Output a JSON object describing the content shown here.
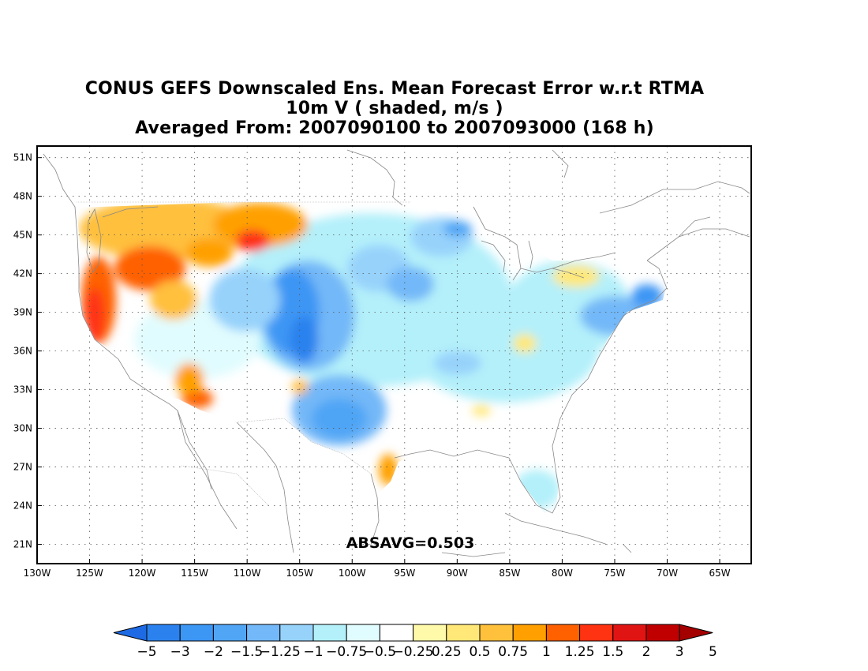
{
  "title": {
    "line1": "CONUS GEFS Downscaled Ens. Mean Forecast Error w.r.t RTMA",
    "line2": "10m V ( shaded, m/s )",
    "line3": "Averaged From: 2007090100 to 2007093000 (168 h)"
  },
  "map": {
    "lon_range": [
      -130,
      -62
    ],
    "lat_range": [
      19.5,
      51.9
    ],
    "lon_ticks": [
      "130W",
      "125W",
      "120W",
      "115W",
      "110W",
      "105W",
      "100W",
      "95W",
      "90W",
      "85W",
      "80W",
      "75W",
      "70W",
      "65W"
    ],
    "lat_ticks": [
      "51N",
      "48N",
      "45N",
      "42N",
      "39N",
      "36N",
      "33N",
      "30N",
      "27N",
      "24N",
      "21N"
    ],
    "grid": "dotted",
    "absavg_label": "ABSAVG=0.503"
  },
  "colorbar": {
    "labels": [
      "-5",
      "-3",
      "-2",
      "-1.5",
      "-1.25",
      "-1",
      "-0.75",
      "-0.5",
      "-0.25",
      "0.25",
      "0.5",
      "0.75",
      "1",
      "1.25",
      "1.5",
      "2",
      "3",
      "5"
    ],
    "colors": [
      "#1e6ae4",
      "#2b82ee",
      "#3c96f4",
      "#50a5f5",
      "#73b8f8",
      "#97d2fb",
      "#b4f0fa",
      "#e1fcfe",
      "#ffffff",
      "#fffaaa",
      "#ffe878",
      "#ffc03c",
      "#ffa000",
      "#ff6000",
      "#ff3212",
      "#e11414",
      "#c00000",
      "#a50000"
    ]
  },
  "chart_data": {
    "type": "heatmap",
    "variable": "10m V",
    "units": "m/s",
    "statistic": "ABSAVG=0.503",
    "x_axis": {
      "type": "longitude",
      "range": [
        -130,
        -62
      ]
    },
    "y_axis": {
      "type": "latitude",
      "range": [
        19.5,
        51.9
      ]
    },
    "color_levels": [
      -5,
      -3,
      -2,
      -1.5,
      -1.25,
      -1,
      -0.75,
      -0.5,
      -0.25,
      0.25,
      0.5,
      0.75,
      1,
      1.25,
      1.5,
      2,
      3,
      5
    ]
  }
}
